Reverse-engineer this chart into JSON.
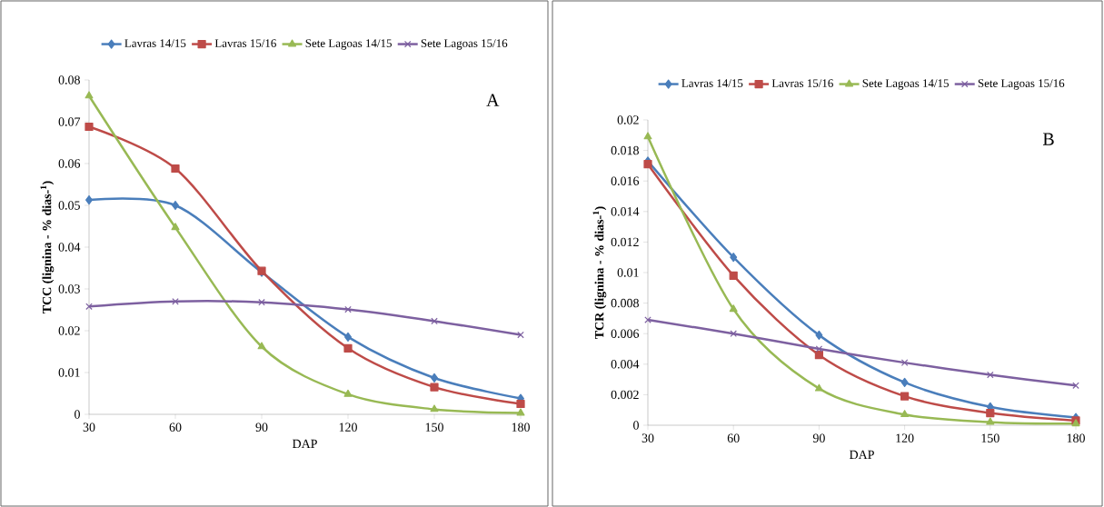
{
  "chart_data": [
    {
      "type": "line",
      "xlabel": "DAP",
      "ylabel": "TCC (lignina - % dias-$^{1}$)",
      "annotations": [
        "A"
      ],
      "x": [
        30,
        60,
        90,
        120,
        150,
        180
      ],
      "xlim": [
        30,
        180
      ],
      "xticks": [
        30,
        60,
        90,
        120,
        150,
        180
      ],
      "ylim": [
        0,
        0.08
      ],
      "yticks": [
        0,
        0.01,
        0.02,
        0.03,
        0.04,
        0.05,
        0.06,
        0.07,
        0.08
      ],
      "legend": "top",
      "grid": false,
      "series": [
        {
          "name": "Lavras 14/15",
          "color": "#4a7ebb",
          "marker": "diamond",
          "values": [
            0.0513,
            0.05,
            0.034,
            0.0185,
            0.0087,
            0.0038
          ]
        },
        {
          "name": "Lavras 15/16",
          "color": "#be4b48",
          "marker": "square",
          "values": [
            0.0688,
            0.0588,
            0.0343,
            0.0158,
            0.0065,
            0.0025
          ]
        },
        {
          "name": "Sete Lagoas 14/15",
          "color": "#98b954",
          "marker": "triangle",
          "values": [
            0.0762,
            0.0447,
            0.0162,
            0.0048,
            0.0012,
            0.0003
          ]
        },
        {
          "name": "Sete Lagoas 15/16",
          "color": "#7d60a0",
          "marker": "cross",
          "values": [
            0.0258,
            0.027,
            0.0268,
            0.0251,
            0.0223,
            0.019
          ]
        }
      ]
    },
    {
      "type": "line",
      "xlabel": "DAP",
      "ylabel": "TCR (lignina - % dias-$^{1}$)",
      "annotations": [
        "B"
      ],
      "x": [
        30,
        60,
        90,
        120,
        150,
        180
      ],
      "xlim": [
        30,
        180
      ],
      "xticks": [
        30,
        60,
        90,
        120,
        150,
        180
      ],
      "ylim": [
        0,
        0.02
      ],
      "yticks": [
        0,
        0.002,
        0.004,
        0.006,
        0.008,
        0.01,
        0.012,
        0.014,
        0.016,
        0.018,
        0.02
      ],
      "legend": "top",
      "grid": false,
      "series": [
        {
          "name": "Lavras 14/15",
          "color": "#4a7ebb",
          "marker": "diamond",
          "values": [
            0.0173,
            0.011,
            0.0059,
            0.0028,
            0.0012,
            0.0005
          ]
        },
        {
          "name": "Lavras 15/16",
          "color": "#be4b48",
          "marker": "square",
          "values": [
            0.0171,
            0.0098,
            0.0046,
            0.0019,
            0.0008,
            0.0003
          ]
        },
        {
          "name": "Sete Lagoas 14/15",
          "color": "#98b954",
          "marker": "triangle",
          "values": [
            0.0189,
            0.0076,
            0.0024,
            0.0007,
            0.0002,
            0.0001
          ]
        },
        {
          "name": "Sete Lagoas 15/16",
          "color": "#7d60a0",
          "marker": "cross",
          "values": [
            0.0069,
            0.006,
            0.005,
            0.0041,
            0.0033,
            0.0026
          ]
        }
      ]
    }
  ]
}
